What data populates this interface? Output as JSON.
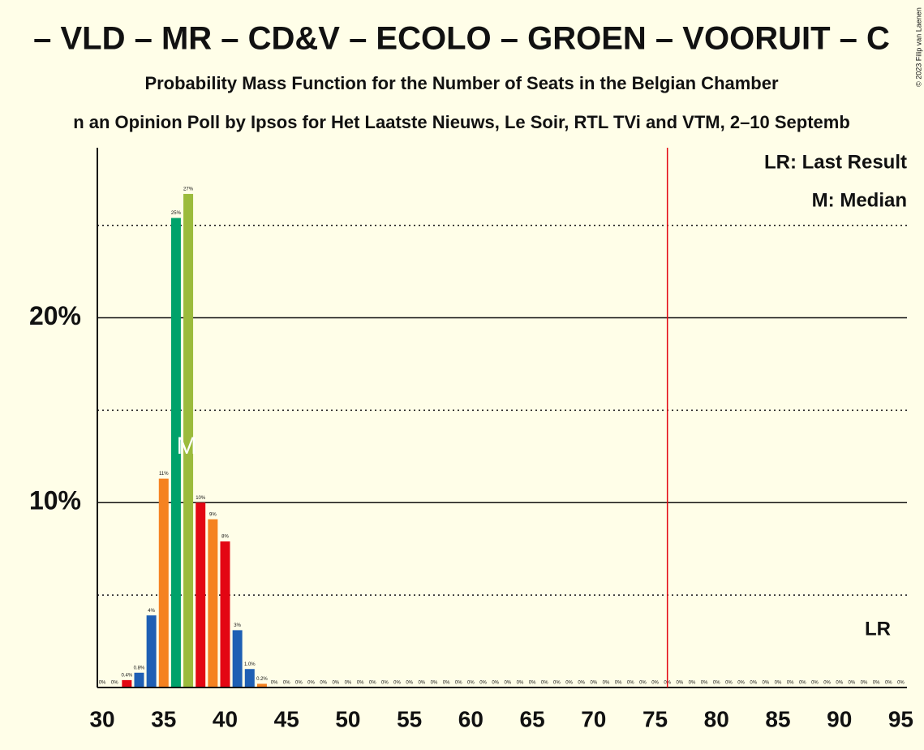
{
  "chart_data": {
    "type": "bar",
    "title": "– VLD – MR – CD&V – ECOLO – GROEN – VOORUIT – C",
    "subtitle": "Probability Mass Function for the Number of Seats in the Belgian Chamber",
    "caption": "n an Opinion Poll by Ipsos for Het Laatste Nieuws, Le Soir, RTL TVi and VTM, 2–10 Septemb",
    "copyright": "© 2023 Filip van Laenen",
    "x": [
      30,
      31,
      32,
      33,
      34,
      35,
      36,
      37,
      38,
      39,
      40,
      41,
      42,
      43,
      44,
      45,
      46,
      47,
      48,
      49,
      50,
      51,
      52,
      53,
      54,
      55,
      56,
      57,
      58,
      59,
      60,
      61,
      62,
      63,
      64,
      65,
      66,
      67,
      68,
      69,
      70,
      71,
      72,
      73,
      74,
      75,
      76,
      77,
      78,
      79,
      80,
      81,
      82,
      83,
      84,
      85,
      86,
      87,
      88,
      89,
      90,
      91,
      92,
      93,
      94,
      95
    ],
    "values": [
      0,
      0,
      0.4,
      0.8,
      3.9,
      11.3,
      25.4,
      26.7,
      10.0,
      9.1,
      7.9,
      3.1,
      1.0,
      0.2,
      0,
      0,
      0,
      0,
      0,
      0,
      0,
      0,
      0,
      0,
      0,
      0,
      0,
      0,
      0,
      0,
      0,
      0,
      0,
      0,
      0,
      0,
      0,
      0,
      0,
      0,
      0,
      0,
      0,
      0,
      0,
      0,
      0,
      0,
      0,
      0,
      0,
      0,
      0,
      0,
      0,
      0,
      0,
      0,
      0,
      0,
      0,
      0,
      0,
      0,
      0,
      0
    ],
    "value_labels": [
      "0%",
      "0%",
      "0.4%",
      "0.8%",
      "4%",
      "11%",
      "25%",
      "27%",
      "10%",
      "9%",
      "8%",
      "3%",
      "1.0%",
      "0.2%",
      "0%",
      "0%",
      "0%",
      "0%",
      "0%",
      "0%",
      "0%",
      "0%",
      "0%",
      "0%",
      "0%",
      "0%",
      "0%",
      "0%",
      "0%",
      "0%",
      "0%",
      "0%",
      "0%",
      "0%",
      "0%",
      "0%",
      "0%",
      "0%",
      "0%",
      "0%",
      "0%",
      "0%",
      "0%",
      "0%",
      "0%",
      "0%",
      "0%",
      "0%",
      "0%",
      "0%",
      "0%",
      "0%",
      "0%",
      "0%",
      "0%",
      "0%",
      "0%",
      "0%",
      "0%",
      "0%",
      "0%",
      "0%",
      "0%",
      "0%",
      "0%",
      "0%"
    ],
    "colors": [
      "#e30613",
      "#1e5fb4",
      "#e30613",
      "#1e5fb4",
      "#1e5fb4",
      "#f58220",
      "#00a26a",
      "#9bbb3c",
      "#e30613",
      "#f58220",
      "#e30613",
      "#1e5fb4",
      "#1e5fb4",
      "#f58220",
      "#e30613",
      "#1e5fb4",
      "#e30613",
      "#1e5fb4",
      "#1e5fb4",
      "#f58220",
      "#00a26a",
      "#9bbb3c",
      "#e30613",
      "#f58220",
      "#e30613",
      "#1e5fb4",
      "#1e5fb4",
      "#f58220",
      "#e30613",
      "#1e5fb4",
      "#e30613",
      "#1e5fb4",
      "#1e5fb4",
      "#f58220",
      "#00a26a",
      "#9bbb3c",
      "#e30613",
      "#f58220",
      "#e30613",
      "#1e5fb4",
      "#1e5fb4",
      "#f58220",
      "#e30613",
      "#1e5fb4",
      "#e30613",
      "#1e5fb4",
      "#1e5fb4",
      "#f58220",
      "#00a26a",
      "#9bbb3c",
      "#e30613",
      "#f58220",
      "#e30613",
      "#1e5fb4",
      "#1e5fb4",
      "#f58220",
      "#e30613",
      "#1e5fb4",
      "#e30613",
      "#1e5fb4",
      "#1e5fb4",
      "#f58220",
      "#00a26a",
      "#9bbb3c",
      "#e30613",
      "#f58220"
    ],
    "xlim": [
      29.6,
      95.5
    ],
    "xticks": [
      30,
      35,
      40,
      45,
      50,
      55,
      60,
      65,
      70,
      75,
      80,
      85,
      90,
      95
    ],
    "ylim": [
      0,
      29.2
    ],
    "yticks": [
      {
        "value": 10,
        "label": "10%"
      },
      {
        "value": 20,
        "label": "20%"
      }
    ],
    "minor_yticks": [
      5,
      15,
      25
    ],
    "median": {
      "x": 37,
      "y": 13,
      "label": "M"
    },
    "last_result": {
      "x": 76,
      "label": "LR",
      "color": "#e30613"
    },
    "legend": [
      "LR: Last Result",
      "M: Median"
    ]
  }
}
